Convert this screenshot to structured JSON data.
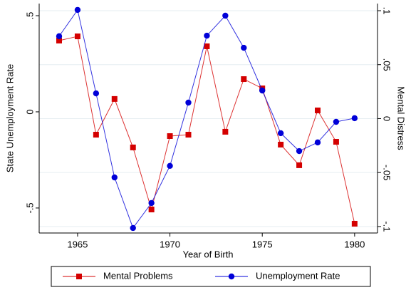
{
  "chart_data": {
    "type": "line",
    "x_label": "Year of Birth",
    "y_label": "State Unemployment Rate",
    "y2_label": "Mental Distress",
    "x": [
      1964,
      1965,
      1966,
      1967,
      1968,
      1969,
      1970,
      1971,
      1972,
      1973,
      1974,
      1975,
      1976,
      1977,
      1978,
      1979,
      1980
    ],
    "xlim": [
      1962.92,
      1981.24
    ],
    "xticks": [
      1965,
      1970,
      1975,
      1980
    ],
    "ylim": [
      -0.63,
      0.563
    ],
    "yticks": [
      {
        "value": -0.5,
        "label": "-.5"
      },
      0,
      {
        "value": 0.5,
        "label": ".5"
      }
    ],
    "y2lim": [
      -0.106,
      0.1066
    ],
    "y2ticks": [
      {
        "value": -0.1,
        "label": "-.1"
      },
      {
        "value": -0.05,
        "label": "-.05"
      },
      0,
      {
        "value": 0.05,
        "label": ".05"
      },
      {
        "value": 0.1,
        "label": ".1"
      }
    ],
    "grid": true,
    "legend": "bottom",
    "series": [
      {
        "name": "Mental Problems",
        "color": "#d40000",
        "marker": "square",
        "axis": "y2",
        "values": [
          0.0723,
          0.0762,
          -0.0149,
          0.0182,
          -0.0267,
          -0.0842,
          -0.0162,
          -0.0149,
          0.067,
          -0.0122,
          0.0366,
          0.028,
          -0.0241,
          -0.0432,
          0.0076,
          -0.0215,
          -0.0974
        ]
      },
      {
        "name": "Unemployment Rate",
        "color": "#0000d8",
        "marker": "circle",
        "values": [
          0.393,
          0.53,
          0.096,
          -0.341,
          -0.604,
          -0.474,
          -0.281,
          0.048,
          0.396,
          0.5,
          0.333,
          0.111,
          -0.111,
          -0.204,
          -0.159,
          -0.052,
          -0.033
        ]
      }
    ]
  }
}
